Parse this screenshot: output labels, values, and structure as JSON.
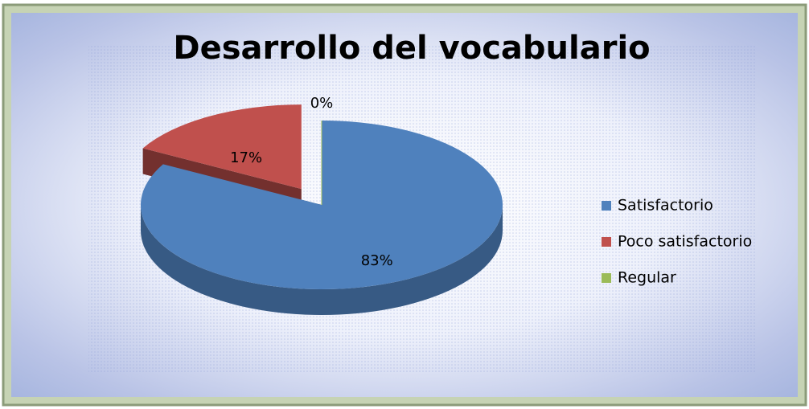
{
  "chart_data": {
    "type": "pie",
    "title": "Desarrollo del vocabulario",
    "categories": [
      "Satisfactorio",
      "Poco satisfactorio",
      "Regular"
    ],
    "values": [
      83,
      17,
      0
    ],
    "value_labels": [
      "83%",
      "17%",
      "0%"
    ],
    "colors": [
      "#4f81bd",
      "#c0504d",
      "#9bbb59"
    ],
    "legend": "right"
  }
}
